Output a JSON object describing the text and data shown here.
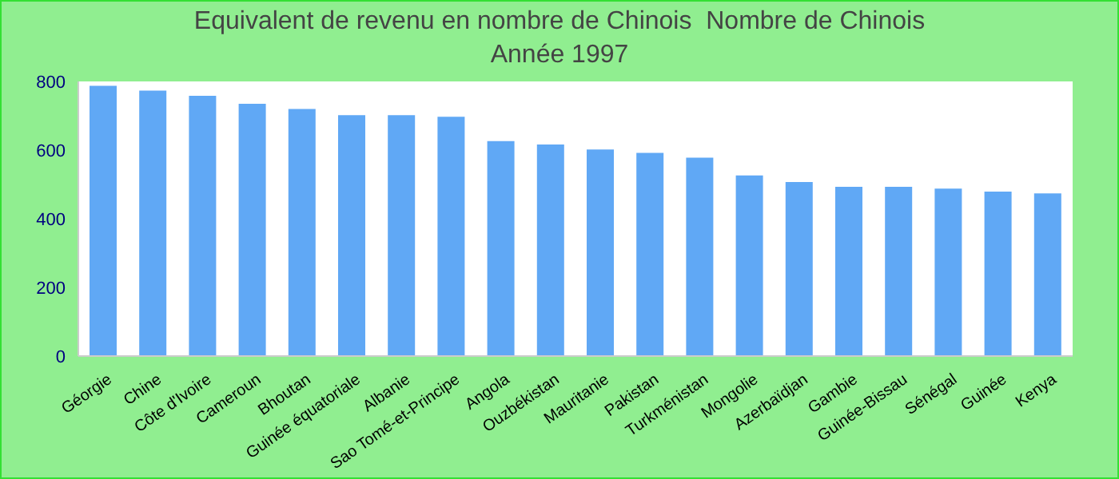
{
  "chart_data": {
    "type": "bar",
    "title": "Equivalent de revenu en nombre de Chinois  Nombre de Chinois",
    "subtitle": "Année 1997",
    "categories": [
      "Géorgie",
      "Chine",
      "Côte d'Ivoire",
      "Cameroun",
      "Bhoutan",
      "Guinée équatoriale",
      "Albanie",
      "Sao Tomé-et-Principe",
      "Angola",
      "Ouzbékistan",
      "Mauritanie",
      "Pakistan",
      "Turkménistan",
      "Mongolie",
      "Azerbaïdjan",
      "Gambie",
      "Guinée-Bissau",
      "Sénégal",
      "Guinée",
      "Kenya"
    ],
    "values": [
      787,
      773,
      758,
      735,
      720,
      702,
      702,
      697,
      626,
      616,
      602,
      592,
      578,
      526,
      507,
      493,
      493,
      488,
      479,
      474
    ],
    "color": "#60a8f5",
    "ylim": [
      0,
      800
    ],
    "yticks": [
      0,
      200,
      400,
      600,
      800
    ]
  }
}
